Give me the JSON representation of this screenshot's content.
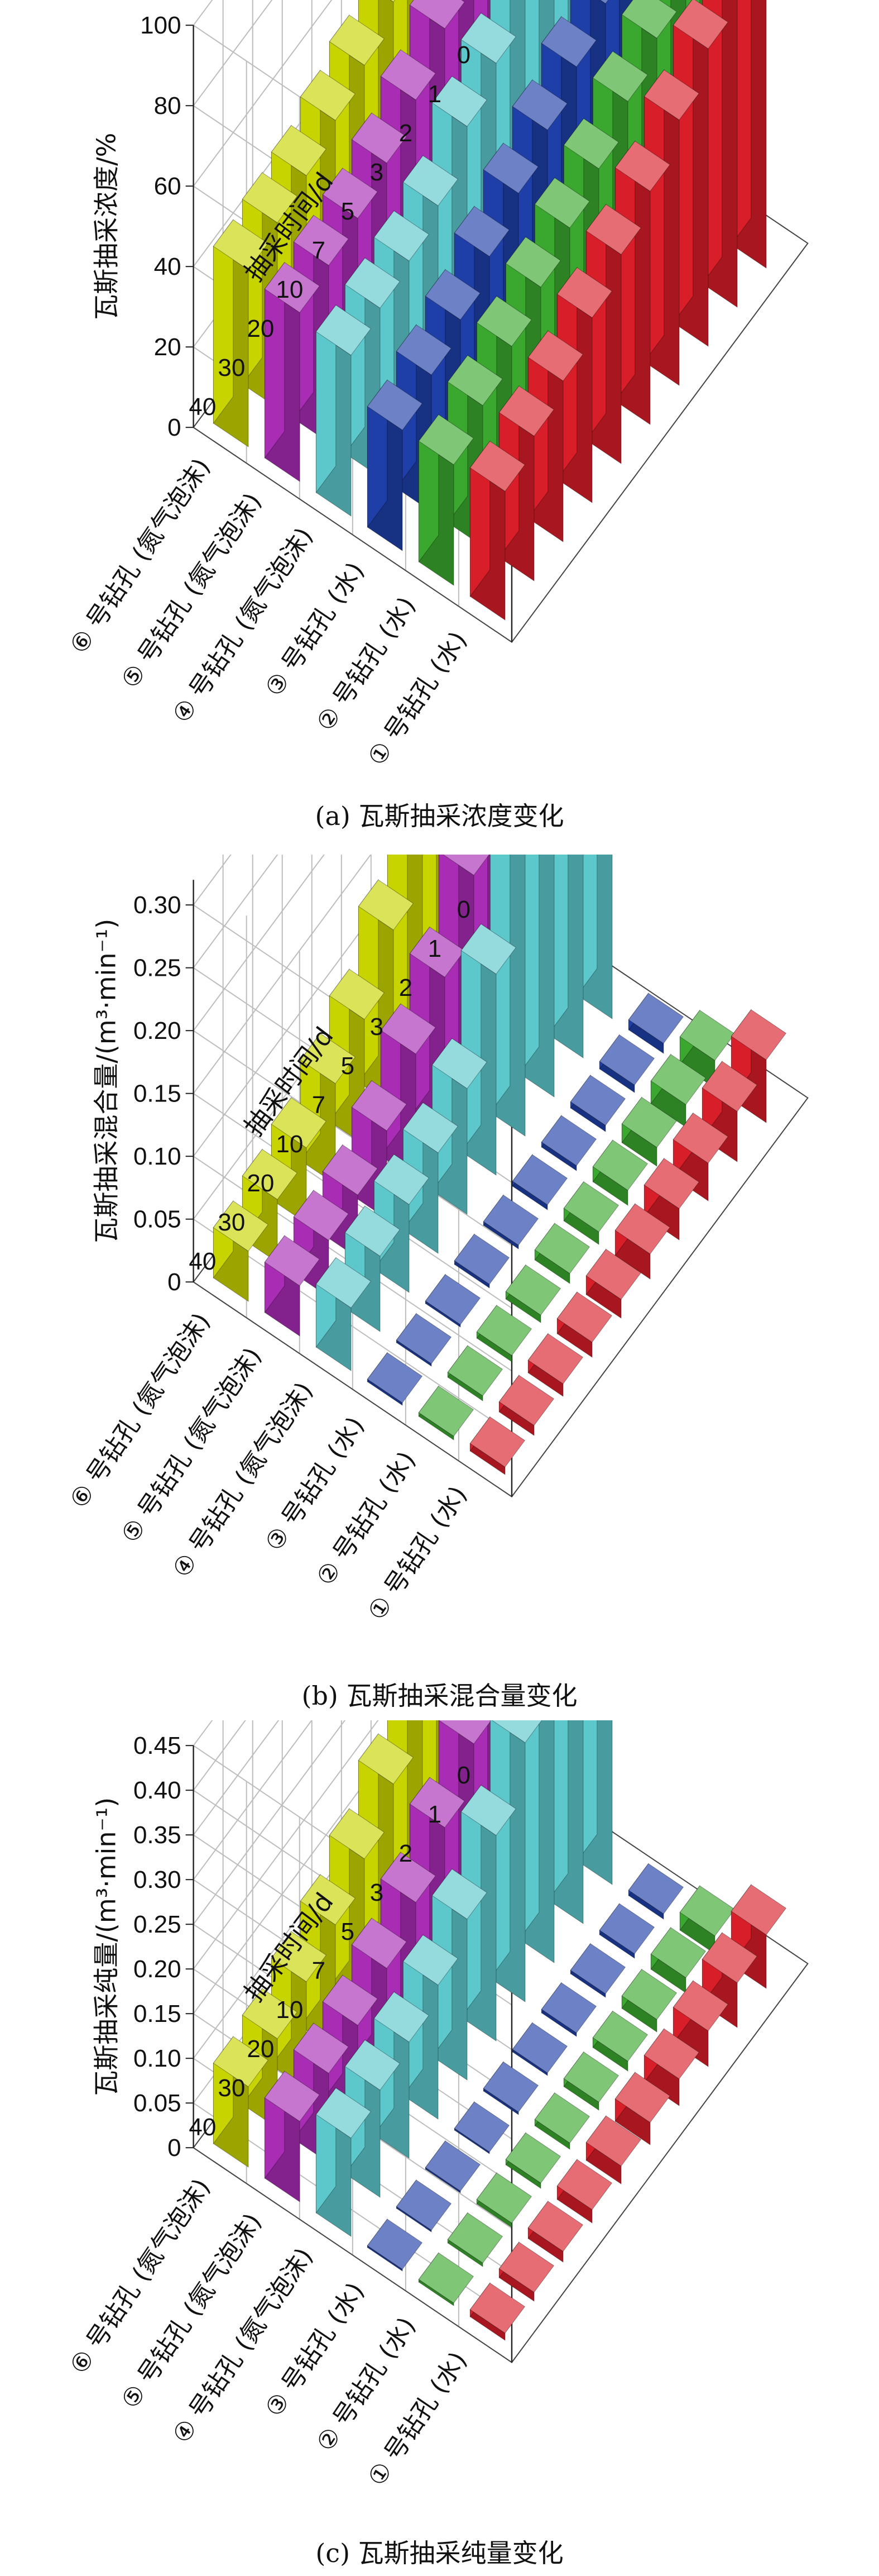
{
  "chart_data": [
    {
      "type": "bar3d",
      "caption": "(a) 瓦斯抽采浓度变化",
      "zlabel": "瓦斯抽采浓度/%",
      "xlabel": "抽采时间/d",
      "zlim": [
        0,
        100
      ],
      "zticks": [
        "0",
        "20",
        "40",
        "60",
        "80",
        "100"
      ],
      "xticks": [
        "0",
        "1",
        "2",
        "3",
        "5",
        "7",
        "10",
        "20",
        "30",
        "40"
      ],
      "x": [
        0,
        1,
        2,
        3,
        5,
        7,
        10,
        20,
        30,
        40
      ],
      "categories": [
        "⑥ 号钻孔 (氮气泡沫)",
        "⑤ 号钻孔 (氮气泡沫)",
        "④ 号钻孔 (氮气泡沫)",
        "③ 号钻孔 (水)",
        "② 号钻孔 (水)",
        "① 号钻孔 (水)"
      ],
      "series": [
        {
          "color": "#c8d400",
          "values": [
            96,
            95,
            93,
            80,
            62,
            56,
            52,
            48,
            46,
            44
          ]
        },
        {
          "color": "#a92cb5",
          "values": [
            88,
            86,
            84,
            76,
            64,
            56,
            50,
            46,
            44,
            42
          ]
        },
        {
          "color": "#5cc8cc",
          "values": [
            86,
            85,
            82,
            78,
            64,
            58,
            48,
            44,
            42,
            40
          ]
        },
        {
          "color": "#1e3fa8",
          "values": [
            80,
            74,
            68,
            62,
            56,
            50,
            44,
            38,
            34,
            30
          ]
        },
        {
          "color": "#3aa82e",
          "values": [
            78,
            74,
            68,
            62,
            55,
            50,
            45,
            40,
            35,
            30
          ]
        },
        {
          "color": "#d81e28",
          "values": [
            90,
            82,
            74,
            66,
            58,
            52,
            46,
            40,
            36,
            32
          ]
        }
      ]
    },
    {
      "type": "bar3d",
      "caption": "(b) 瓦斯抽采混合量变化",
      "zlabel": "瓦斯抽采混合量/(m³·min⁻¹)",
      "xlabel": "抽采时间/d",
      "zlim": [
        0,
        0.32
      ],
      "zticks": [
        "0",
        "0.05",
        "0.10",
        "0.15",
        "0.20",
        "0.25",
        "0.30"
      ],
      "xticks": [
        "0",
        "1",
        "2",
        "3",
        "5",
        "7",
        "10",
        "20",
        "30",
        "40"
      ],
      "x": [
        0,
        1,
        2,
        3,
        5,
        7,
        10,
        20,
        30,
        40
      ],
      "categories": [
        "⑥ 号钻孔 (氮气泡沫)",
        "⑤ 号钻孔 (氮气泡沫)",
        "④ 号钻孔 (氮气泡沫)",
        "③ 号钻孔 (水)",
        "② 号钻孔 (水)",
        "① 号钻孔 (水)"
      ],
      "series": [
        {
          "color": "#c8d400",
          "values": [
            0.3,
            0.28,
            0.25,
            0.19,
            0.14,
            0.1,
            0.08,
            0.06,
            0.05,
            0.04
          ]
        },
        {
          "color": "#a92cb5",
          "values": [
            0.29,
            0.27,
            0.24,
            0.18,
            0.13,
            0.1,
            0.07,
            0.05,
            0.045,
            0.04
          ]
        },
        {
          "color": "#5cc8cc",
          "values": [
            0.31,
            0.3,
            0.28,
            0.24,
            0.16,
            0.1,
            0.08,
            0.07,
            0.06,
            0.05
          ]
        },
        {
          "color": "#1e3fa8",
          "values": [
            0.008,
            0.006,
            0.005,
            0.004,
            0.004,
            0.003,
            0.003,
            0.002,
            0.002,
            0.002
          ]
        },
        {
          "color": "#3aa82e",
          "values": [
            0.022,
            0.018,
            0.015,
            0.012,
            0.01,
            0.008,
            0.006,
            0.005,
            0.004,
            0.003
          ]
        },
        {
          "color": "#d81e28",
          "values": [
            0.05,
            0.04,
            0.03,
            0.025,
            0.02,
            0.015,
            0.012,
            0.01,
            0.008,
            0.006
          ]
        }
      ]
    },
    {
      "type": "bar3d",
      "caption": "(c) 瓦斯抽采纯量变化",
      "zlabel": "瓦斯抽采纯量/(m³·min⁻¹)",
      "xlabel": "抽采时间/d",
      "zlim": [
        0,
        0.45
      ],
      "zticks": [
        "0",
        "0.05",
        "0.10",
        "0.15",
        "0.20",
        "0.25",
        "0.30",
        "0.35",
        "0.40",
        "0.45"
      ],
      "xticks": [
        "0",
        "1",
        "2",
        "3",
        "5",
        "7",
        "10",
        "20",
        "30",
        "40"
      ],
      "x": [
        0,
        1,
        2,
        3,
        5,
        7,
        10,
        20,
        30,
        40
      ],
      "categories": [
        "⑥ 号钻孔 (氮气泡沫)",
        "⑤ 号钻孔 (氮气泡沫)",
        "④ 号钻孔 (氮气泡沫)",
        "③ 号钻孔 (水)",
        "② 号钻孔 (水)",
        "① 号钻孔 (水)"
      ],
      "series": [
        {
          "color": "#c8d400",
          "values": [
            0.4,
            0.38,
            0.33,
            0.27,
            0.21,
            0.17,
            0.14,
            0.12,
            0.1,
            0.09
          ]
        },
        {
          "color": "#a92cb5",
          "values": [
            0.38,
            0.36,
            0.31,
            0.25,
            0.2,
            0.16,
            0.13,
            0.11,
            0.1,
            0.09
          ]
        },
        {
          "color": "#5cc8cc",
          "values": [
            0.44,
            0.38,
            0.34,
            0.29,
            0.23,
            0.18,
            0.15,
            0.13,
            0.12,
            0.11
          ]
        },
        {
          "color": "#1e3fa8",
          "values": [
            0.006,
            0.005,
            0.004,
            0.004,
            0.003,
            0.003,
            0.002,
            0.002,
            0.002,
            0.002
          ]
        },
        {
          "color": "#3aa82e",
          "values": [
            0.02,
            0.017,
            0.014,
            0.011,
            0.009,
            0.007,
            0.006,
            0.005,
            0.004,
            0.003
          ]
        },
        {
          "color": "#d81e28",
          "values": [
            0.06,
            0.05,
            0.04,
            0.03,
            0.025,
            0.02,
            0.015,
            0.012,
            0.01,
            0.008
          ]
        }
      ]
    }
  ]
}
